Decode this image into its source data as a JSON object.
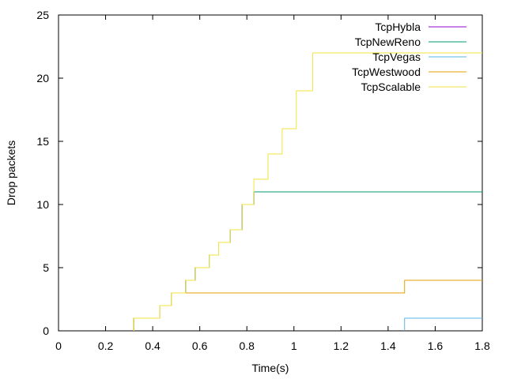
{
  "chart_data": {
    "type": "line",
    "step": true,
    "xlabel": "Time(s)",
    "ylabel": "Drop packets",
    "xlim": [
      0,
      1.8
    ],
    "ylim": [
      0,
      25
    ],
    "xticks": [
      "0",
      "0.2",
      "0.4",
      "0.6",
      "0.8",
      "1",
      "1.2",
      "1.4",
      "1.6",
      "1.8"
    ],
    "yticks": [
      "0",
      "5",
      "10",
      "15",
      "20",
      "25"
    ],
    "grid": false,
    "legend_position": "top-right",
    "series": [
      {
        "name": "TcpHybla",
        "color": "#9400d3",
        "points": [
          [
            0.32,
            1
          ],
          [
            0.43,
            2
          ],
          [
            0.48,
            3
          ],
          [
            0.54,
            4
          ],
          [
            0.58,
            5
          ],
          [
            0.64,
            6
          ],
          [
            0.68,
            7
          ],
          [
            0.73,
            8
          ],
          [
            0.78,
            10
          ],
          [
            0.83,
            11
          ],
          [
            1.8,
            11
          ]
        ]
      },
      {
        "name": "TcpNewReno",
        "color": "#009e73",
        "points": [
          [
            0.32,
            1
          ],
          [
            0.43,
            2
          ],
          [
            0.48,
            3
          ],
          [
            0.54,
            4
          ],
          [
            0.58,
            5
          ],
          [
            0.64,
            6
          ],
          [
            0.68,
            7
          ],
          [
            0.73,
            8
          ],
          [
            0.78,
            10
          ],
          [
            0.83,
            11
          ],
          [
            1.8,
            11
          ]
        ]
      },
      {
        "name": "TcpVegas",
        "color": "#56b4e9",
        "points": [
          [
            1.47,
            1
          ],
          [
            1.8,
            1
          ]
        ]
      },
      {
        "name": "TcpWestwood",
        "color": "#e69f00",
        "points": [
          [
            0.32,
            1
          ],
          [
            0.43,
            2
          ],
          [
            0.48,
            3
          ],
          [
            1.47,
            4
          ],
          [
            1.8,
            4
          ]
        ]
      },
      {
        "name": "TcpScalable",
        "color": "#f0e442",
        "points": [
          [
            0.32,
            1
          ],
          [
            0.43,
            2
          ],
          [
            0.48,
            3
          ],
          [
            0.54,
            4
          ],
          [
            0.58,
            5
          ],
          [
            0.64,
            6
          ],
          [
            0.68,
            7
          ],
          [
            0.73,
            8
          ],
          [
            0.78,
            10
          ],
          [
            0.83,
            12
          ],
          [
            0.89,
            14
          ],
          [
            0.95,
            16
          ],
          [
            1.01,
            19
          ],
          [
            1.08,
            22
          ],
          [
            1.8,
            22
          ]
        ]
      }
    ]
  }
}
